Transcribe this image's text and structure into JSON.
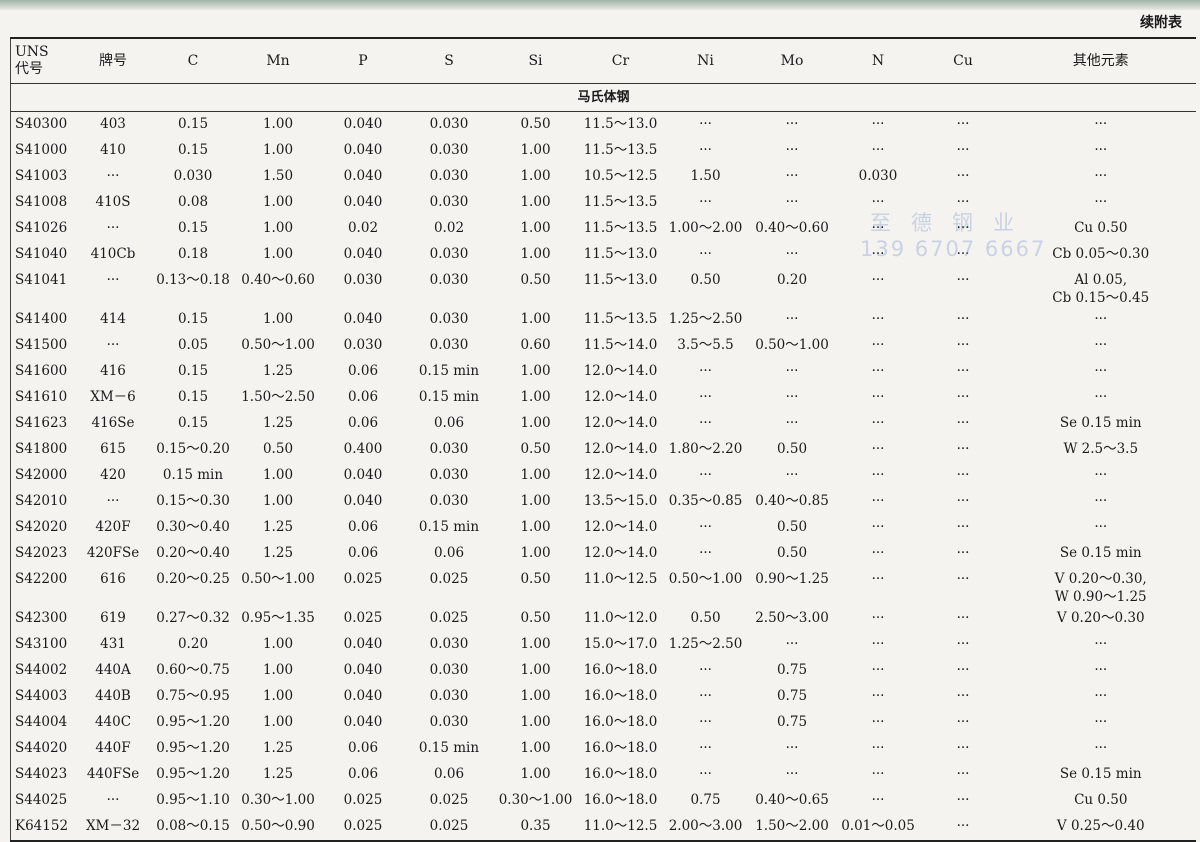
{
  "continued_label": "续附表",
  "headers": [
    "UNS\n代号",
    "牌号",
    "C",
    "Mn",
    "P",
    "S",
    "Si",
    "Cr",
    "Ni",
    "Mo",
    "N",
    "Cu",
    "其他元素"
  ],
  "section": "马氏体钢",
  "watermark": {
    "line1": "至德钢业",
    "line2": "139 6707 6667"
  },
  "rows": [
    [
      "S40300",
      "403",
      "0.15",
      "1.00",
      "0.040",
      "0.030",
      "0.50",
      "11.5～13.0",
      "···",
      "···",
      "···",
      "···",
      "···"
    ],
    [
      "S41000",
      "410",
      "0.15",
      "1.00",
      "0.040",
      "0.030",
      "1.00",
      "11.5～13.5",
      "···",
      "···",
      "···",
      "···",
      "···"
    ],
    [
      "S41003",
      "···",
      "0.030",
      "1.50",
      "0.040",
      "0.030",
      "1.00",
      "10.5～12.5",
      "1.50",
      "···",
      "0.030",
      "···",
      "···"
    ],
    [
      "S41008",
      "410S",
      "0.08",
      "1.00",
      "0.040",
      "0.030",
      "1.00",
      "11.5～13.5",
      "···",
      "···",
      "···",
      "···",
      "···"
    ],
    [
      "S41026",
      "···",
      "0.15",
      "1.00",
      "0.02",
      "0.02",
      "1.00",
      "11.5～13.5",
      "1.00～2.00",
      "0.40～0.60",
      "···",
      "···",
      "Cu 0.50"
    ],
    [
      "S41040",
      "410Cb",
      "0.18",
      "1.00",
      "0.040",
      "0.030",
      "1.00",
      "11.5～13.0",
      "···",
      "···",
      "···",
      "···",
      "Cb 0.05～0.30"
    ],
    [
      "S41041",
      "···",
      "0.13～0.18",
      "0.40～0.60",
      "0.030",
      "0.030",
      "0.50",
      "11.5～13.0",
      "0.50",
      "0.20",
      "···",
      "···",
      "Al 0.05,\nCb 0.15～0.45"
    ],
    [
      "S41400",
      "414",
      "0.15",
      "1.00",
      "0.040",
      "0.030",
      "1.00",
      "11.5～13.5",
      "1.25～2.50",
      "···",
      "···",
      "···",
      "···"
    ],
    [
      "S41500",
      "···",
      "0.05",
      "0.50～1.00",
      "0.030",
      "0.030",
      "0.60",
      "11.5～14.0",
      "3.5～5.5",
      "0.50～1.00",
      "···",
      "···",
      "···"
    ],
    [
      "S41600",
      "416",
      "0.15",
      "1.25",
      "0.06",
      "0.15 min",
      "1.00",
      "12.0～14.0",
      "···",
      "···",
      "···",
      "···",
      "···"
    ],
    [
      "S41610",
      "XM－6",
      "0.15",
      "1.50～2.50",
      "0.06",
      "0.15 min",
      "1.00",
      "12.0～14.0",
      "···",
      "···",
      "···",
      "···",
      "···"
    ],
    [
      "S41623",
      "416Se",
      "0.15",
      "1.25",
      "0.06",
      "0.06",
      "1.00",
      "12.0～14.0",
      "···",
      "···",
      "···",
      "···",
      "Se 0.15 min"
    ],
    [
      "S41800",
      "615",
      "0.15～0.20",
      "0.50",
      "0.400",
      "0.030",
      "0.50",
      "12.0～14.0",
      "1.80～2.20",
      "0.50",
      "···",
      "···",
      "W 2.5～3.5"
    ],
    [
      "S42000",
      "420",
      "0.15 min",
      "1.00",
      "0.040",
      "0.030",
      "1.00",
      "12.0～14.0",
      "···",
      "···",
      "···",
      "···",
      "···"
    ],
    [
      "S42010",
      "···",
      "0.15～0.30",
      "1.00",
      "0.040",
      "0.030",
      "1.00",
      "13.5～15.0",
      "0.35～0.85",
      "0.40～0.85",
      "···",
      "···",
      "···"
    ],
    [
      "S42020",
      "420F",
      "0.30～0.40",
      "1.25",
      "0.06",
      "0.15 min",
      "1.00",
      "12.0～14.0",
      "···",
      "0.50",
      "···",
      "···",
      "···"
    ],
    [
      "S42023",
      "420FSe",
      "0.20～0.40",
      "1.25",
      "0.06",
      "0.06",
      "1.00",
      "12.0～14.0",
      "···",
      "0.50",
      "···",
      "···",
      "Se 0.15 min"
    ],
    [
      "S42200",
      "616",
      "0.20～0.25",
      "0.50～1.00",
      "0.025",
      "0.025",
      "0.50",
      "11.0～12.5",
      "0.50～1.00",
      "0.90～1.25",
      "···",
      "···",
      "V 0.20～0.30,\nW 0.90～1.25"
    ],
    [
      "S42300",
      "619",
      "0.27～0.32",
      "0.95～1.35",
      "0.025",
      "0.025",
      "0.50",
      "11.0～12.0",
      "0.50",
      "2.50～3.00",
      "···",
      "···",
      "V 0.20～0.30"
    ],
    [
      "S43100",
      "431",
      "0.20",
      "1.00",
      "0.040",
      "0.030",
      "1.00",
      "15.0～17.0",
      "1.25～2.50",
      "···",
      "···",
      "···",
      "···"
    ],
    [
      "S44002",
      "440A",
      "0.60～0.75",
      "1.00",
      "0.040",
      "0.030",
      "1.00",
      "16.0～18.0",
      "···",
      "0.75",
      "···",
      "···",
      "···"
    ],
    [
      "S44003",
      "440B",
      "0.75～0.95",
      "1.00",
      "0.040",
      "0.030",
      "1.00",
      "16.0～18.0",
      "···",
      "0.75",
      "···",
      "···",
      "···"
    ],
    [
      "S44004",
      "440C",
      "0.95～1.20",
      "1.00",
      "0.040",
      "0.030",
      "1.00",
      "16.0～18.0",
      "···",
      "0.75",
      "···",
      "···",
      "···"
    ],
    [
      "S44020",
      "440F",
      "0.95～1.20",
      "1.25",
      "0.06",
      "0.15 min",
      "1.00",
      "16.0～18.0",
      "···",
      "···",
      "···",
      "···",
      "···"
    ],
    [
      "S44023",
      "440FSe",
      "0.95～1.20",
      "1.25",
      "0.06",
      "0.06",
      "1.00",
      "16.0～18.0",
      "···",
      "···",
      "···",
      "···",
      "Se 0.15 min"
    ],
    [
      "S44025",
      "···",
      "0.95～1.10",
      "0.30～1.00",
      "0.025",
      "0.025",
      "0.30～1.00",
      "16.0～18.0",
      "0.75",
      "0.40～0.65",
      "···",
      "···",
      "Cu 0.50"
    ],
    [
      "K64152",
      "XM－32",
      "0.08～0.15",
      "0.50～0.90",
      "0.025",
      "0.025",
      "0.35",
      "11.0～12.5",
      "2.00～3.00",
      "1.50～2.00",
      "0.01～0.05",
      "···",
      "V 0.25～0.40"
    ]
  ]
}
